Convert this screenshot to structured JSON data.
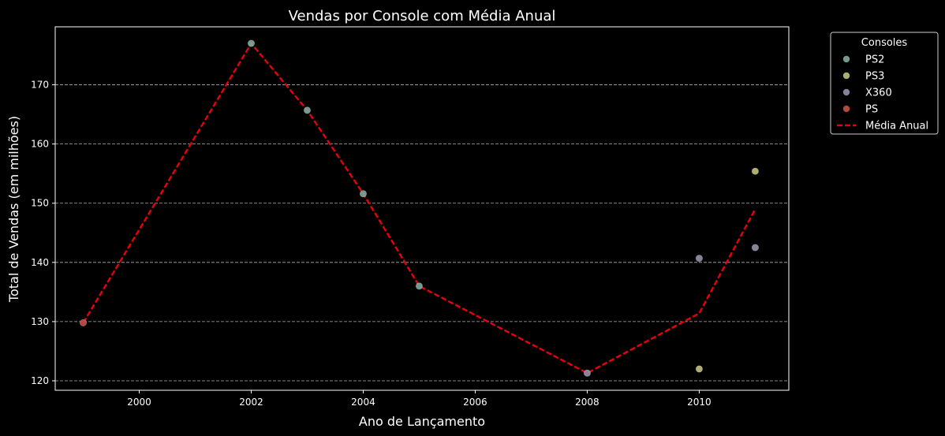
{
  "chart_data": {
    "type": "scatter",
    "title": "Vendas por Console com Média Anual",
    "xlabel": "Ano de Lançamento",
    "ylabel": "Total de Vendas (em milhões)",
    "xlim": [
      1998.5,
      2011.6
    ],
    "ylim": [
      118.4,
      179.8
    ],
    "xticks": [
      2000,
      2002,
      2004,
      2006,
      2008,
      2010
    ],
    "yticks": [
      120,
      130,
      140,
      150,
      160,
      170
    ],
    "grid": "horizontal dashed",
    "legend_title": "Consoles",
    "legend_position": "outside right, top",
    "series": [
      {
        "name": "PS2",
        "color": "#7fa89c",
        "points": [
          [
            2002,
            177.0
          ],
          [
            2003,
            165.7
          ],
          [
            2004,
            151.6
          ],
          [
            2005,
            136.0
          ]
        ]
      },
      {
        "name": "PS3",
        "color": "#c2c07e",
        "points": [
          [
            2010,
            122.0
          ],
          [
            2011,
            155.4
          ]
        ]
      },
      {
        "name": "X360",
        "color": "#9690aa",
        "points": [
          [
            2008,
            121.3
          ],
          [
            2010,
            140.7
          ],
          [
            2011,
            142.5
          ]
        ]
      },
      {
        "name": "PS",
        "color": "#c5504a",
        "points": [
          [
            1999,
            129.8
          ]
        ]
      }
    ],
    "average_line": {
      "name": "Média Anual",
      "color": "#e8000b",
      "points": [
        [
          1999,
          129.8
        ],
        [
          2002,
          177.0
        ],
        [
          2003,
          165.7
        ],
        [
          2004,
          151.6
        ],
        [
          2005,
          136.0
        ],
        [
          2008,
          121.3
        ],
        [
          2010,
          131.4
        ],
        [
          2011,
          149.0
        ]
      ]
    }
  }
}
